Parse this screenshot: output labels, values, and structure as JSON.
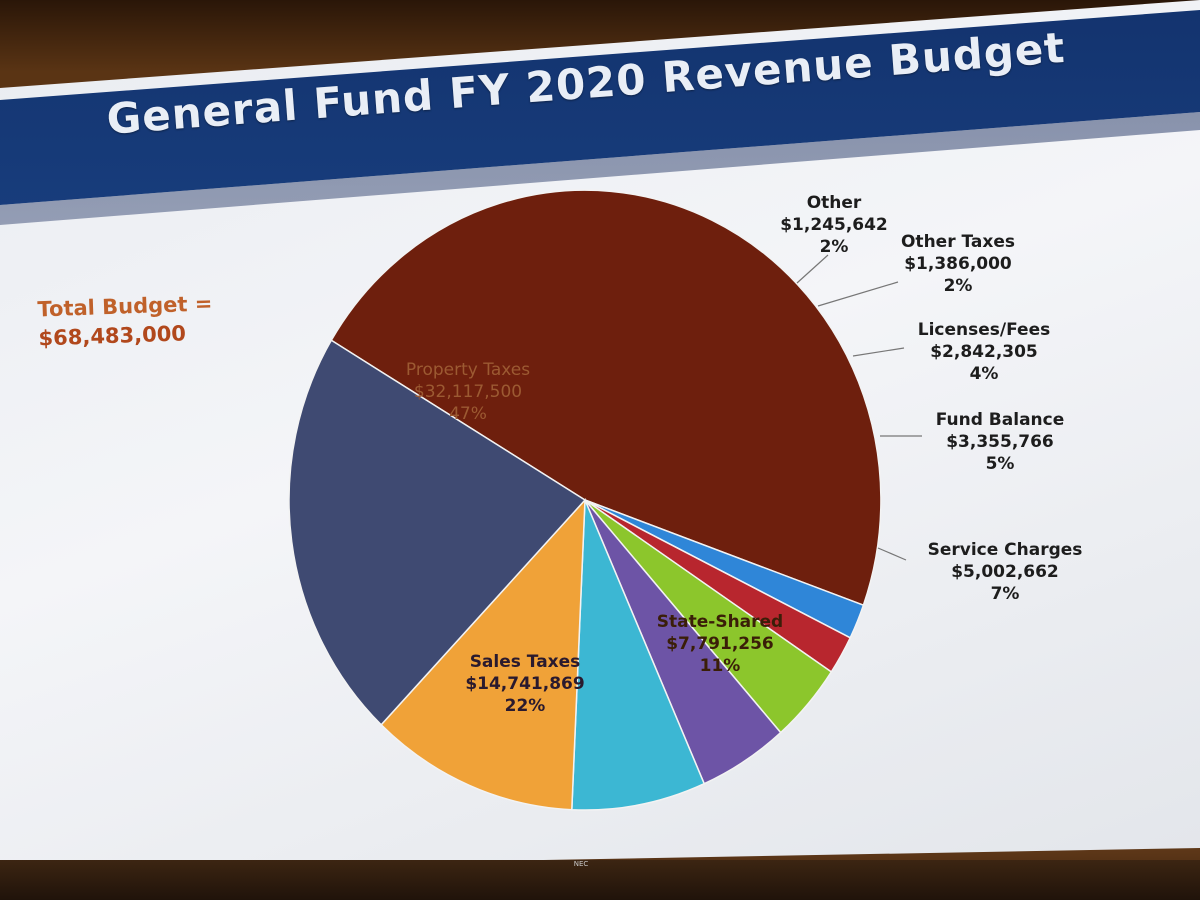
{
  "slide": {
    "title": "General Fund FY 2020 Revenue Budget",
    "total_label": "Total Budget =",
    "total_value": "$68,483,000",
    "projector_brand": "NEC"
  },
  "chart_data": {
    "type": "pie",
    "title": "General Fund FY 2020 Revenue Budget",
    "total": 68483000,
    "slices": [
      {
        "label": "Property Taxes",
        "amount": "$32,117,500",
        "percent": "47%",
        "value": 32117500,
        "color": "#6e1f0d"
      },
      {
        "label": "Other",
        "amount": "$1,245,642",
        "percent": "2%",
        "value": 1245642,
        "color": "#2f86d8"
      },
      {
        "label": "Other Taxes",
        "amount": "$1,386,000",
        "percent": "2%",
        "value": 1386000,
        "color": "#b8262e"
      },
      {
        "label": "Licenses/Fees",
        "amount": "$2,842,305",
        "percent": "4%",
        "value": 2842305,
        "color": "#8cc62c"
      },
      {
        "label": "Fund Balance",
        "amount": "$3,355,766",
        "percent": "5%",
        "value": 3355766,
        "color": "#6d54a6"
      },
      {
        "label": "Service Charges",
        "amount": "$5,002,662",
        "percent": "7%",
        "value": 5002662,
        "color": "#3cb7d3"
      },
      {
        "label": "State-Shared",
        "amount": "$7,791,256",
        "percent": "11%",
        "value": 7791256,
        "color": "#f0a238"
      },
      {
        "label": "Sales Taxes",
        "amount": "$14,741,869",
        "percent": "22%",
        "value": 14741869,
        "color": "#3f4a72"
      }
    ]
  }
}
